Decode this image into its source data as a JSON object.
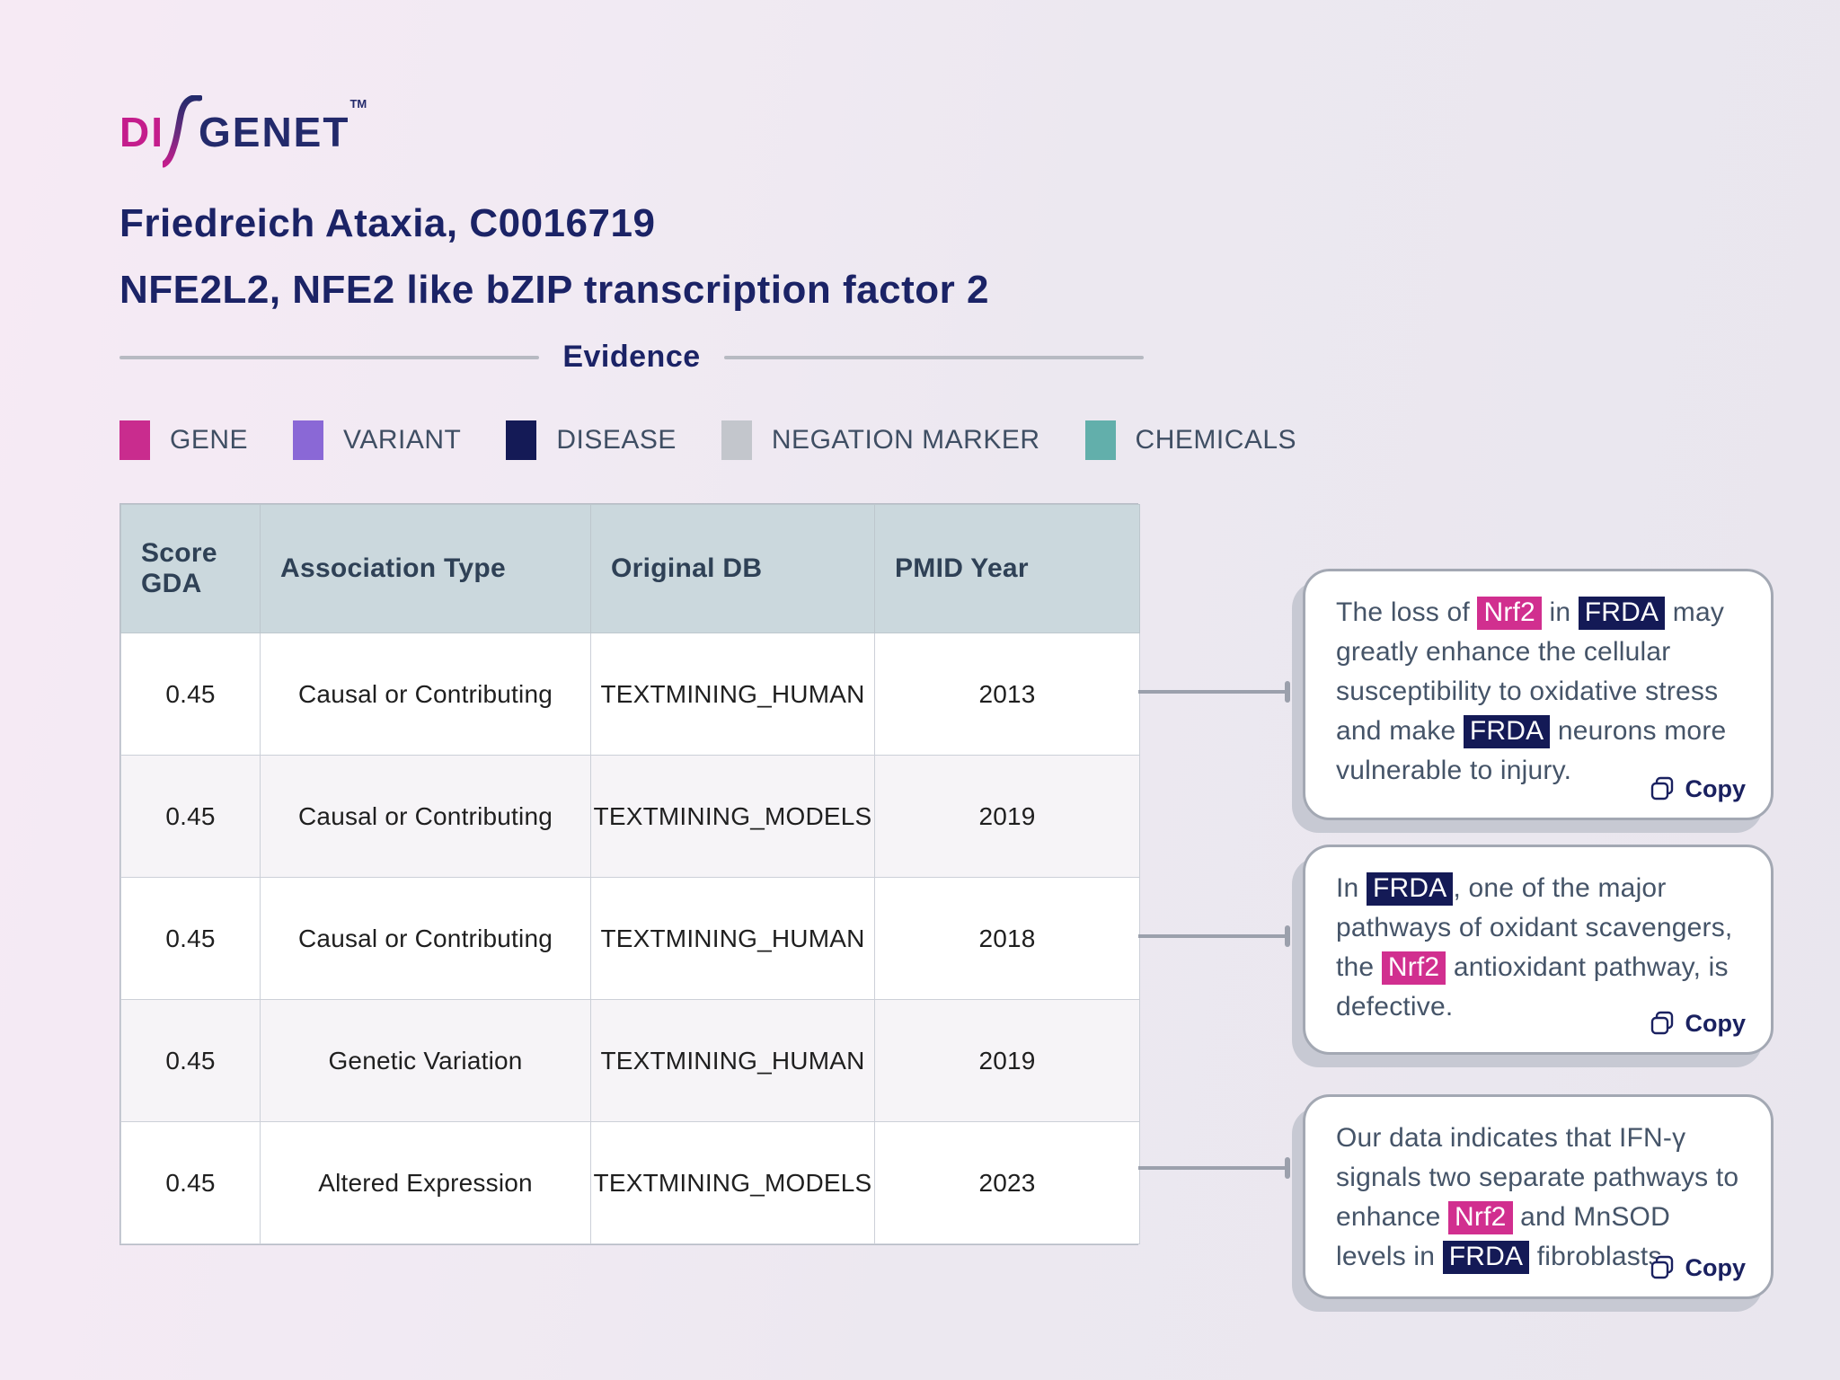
{
  "logo": {
    "part1": "DI",
    "part2": "GENET",
    "tm": "TM"
  },
  "header": {
    "title_line1": "Friedreich Ataxia, C0016719",
    "title_line2": "NFE2L2, NFE2 like bZIP transcription factor 2"
  },
  "divider": {
    "label": "Evidence"
  },
  "legend": {
    "items": [
      {
        "label": "GENE",
        "color": "#c92c8e"
      },
      {
        "label": "VARIANT",
        "color": "#8a68d6"
      },
      {
        "label": "DISEASE",
        "color": "#141a56"
      },
      {
        "label": "NEGATION MARKER",
        "color": "#c3c6cc"
      },
      {
        "label": "CHEMICALS",
        "color": "#62afab"
      }
    ]
  },
  "table": {
    "columns": [
      {
        "key": "score",
        "label": "Score GDA"
      },
      {
        "key": "association_type",
        "label": "Association Type"
      },
      {
        "key": "original_db",
        "label": "Original DB"
      },
      {
        "key": "pmid_year",
        "label": "PMID Year"
      }
    ],
    "rows": [
      {
        "score": "0.45",
        "association_type": "Causal or Contributing",
        "original_db": "TEXTMINING_HUMAN",
        "pmid_year": "2013"
      },
      {
        "score": "0.45",
        "association_type": "Causal or Contributing",
        "original_db": "TEXTMINING_MODELS",
        "pmid_year": "2019"
      },
      {
        "score": "0.45",
        "association_type": "Causal or Contributing",
        "original_db": "TEXTMINING_HUMAN",
        "pmid_year": "2018"
      },
      {
        "score": "0.45",
        "association_type": "Genetic Variation",
        "original_db": "TEXTMINING_HUMAN",
        "pmid_year": "2019"
      },
      {
        "score": "0.45",
        "association_type": "Altered Expression",
        "original_db": "TEXTMINING_MODELS",
        "pmid_year": "2023"
      }
    ]
  },
  "cards": [
    {
      "copy_label": "Copy",
      "segments": [
        {
          "text": "The loss of "
        },
        {
          "text": "Nrf2",
          "highlight": "gene"
        },
        {
          "text": " in "
        },
        {
          "text": "FRDA",
          "highlight": "disease"
        },
        {
          "text": " may greatly enhance the cellular susceptibility to oxidative stress and make "
        },
        {
          "text": "FRDA",
          "highlight": "disease"
        },
        {
          "text": " neurons more vulnerable to injury."
        }
      ]
    },
    {
      "copy_label": "Copy",
      "segments": [
        {
          "text": "In "
        },
        {
          "text": "FRDA",
          "highlight": "disease"
        },
        {
          "text": ", one of the major pathways of oxidant scavengers, the "
        },
        {
          "text": "Nrf2",
          "highlight": "gene"
        },
        {
          "text": " antioxidant pathway, is defective."
        }
      ]
    },
    {
      "copy_label": "Copy",
      "segments": [
        {
          "text": "Our data indicates that IFN-γ signals two separate pathways to enhance "
        },
        {
          "text": "Nrf2",
          "highlight": "gene"
        },
        {
          "text": " and MnSOD levels in "
        },
        {
          "text": "FRDA",
          "highlight": "disease"
        },
        {
          "text": " fibroblasts."
        }
      ]
    }
  ],
  "colors": {
    "gene_highlight": "#d12f8f",
    "disease_highlight": "#141a56",
    "title_navy": "#1b2366",
    "logo_magenta": "#c41d8c",
    "table_header_bg": "#cbd8dd",
    "connector_gray": "#9ba0ac"
  }
}
